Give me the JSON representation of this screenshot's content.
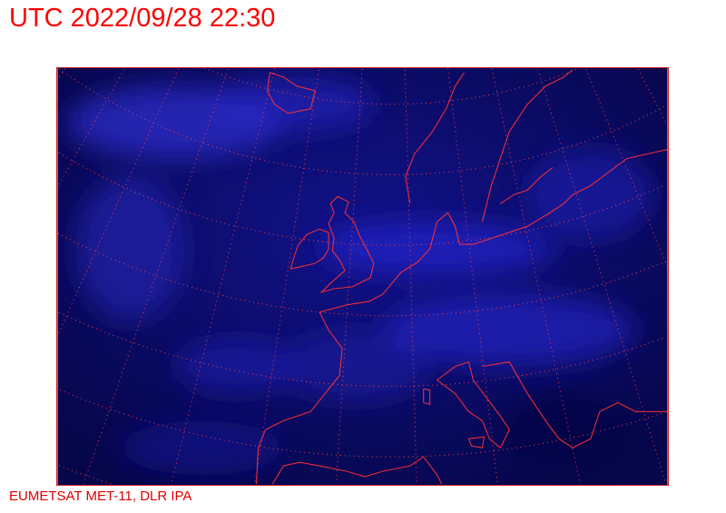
{
  "header": {
    "title": "UTC 2022/09/28 22:30"
  },
  "footer": {
    "credit": "EUMETSAT MET-11, DLR IPA"
  },
  "map": {
    "type": "satellite-image",
    "region": "Europe",
    "colors": {
      "background": "#0a0a5a",
      "cloud": "#2a2ae0",
      "coastline": "#ff3030",
      "grid": "#ff4040"
    }
  }
}
